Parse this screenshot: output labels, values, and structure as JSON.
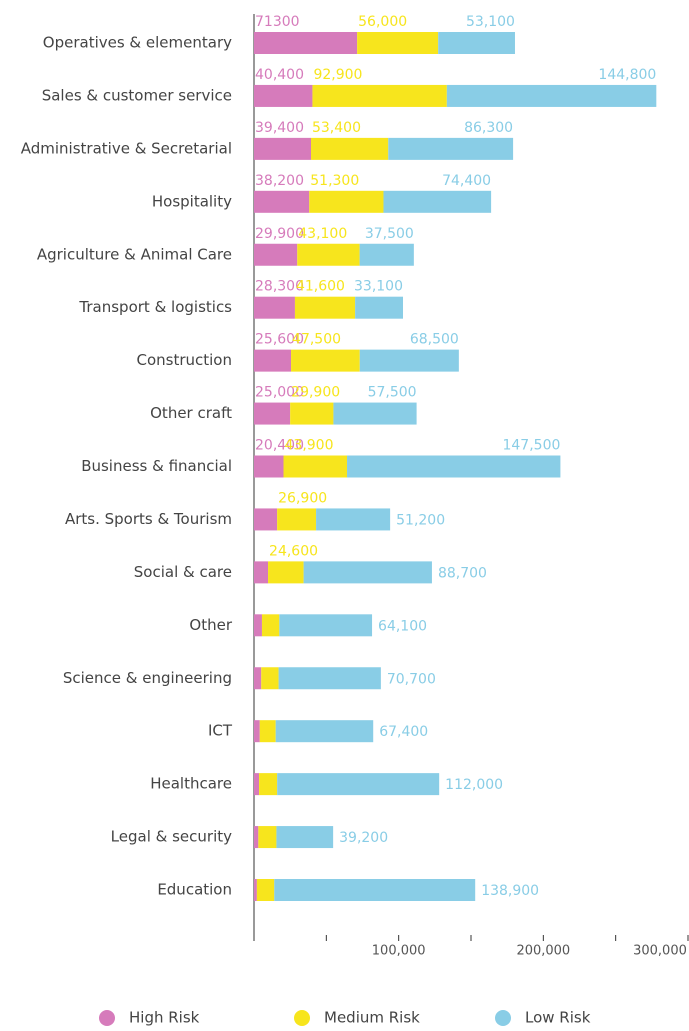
{
  "chart_data": {
    "type": "stacked-bar-horizontal",
    "categories": [
      "Operatives & elementary",
      "Sales & customer service",
      "Administrative & Secretarial",
      "Hospitality",
      "Agriculture & Animal Care",
      "Transport & logistics",
      "Construction",
      "Other craft",
      "Business & financial",
      "Arts. Sports & Tourism",
      "Social & care",
      "Other",
      "Science & engineering",
      "ICT",
      "Healthcare",
      "Legal & security",
      "Education"
    ],
    "series": [
      {
        "name": "High Risk",
        "color": "#d67bbb",
        "values": [
          71300,
          40400,
          39400,
          38200,
          29900,
          28300,
          25600,
          25000,
          20400,
          16000,
          9700,
          5500,
          5000,
          4000,
          3500,
          3000,
          2000
        ],
        "value_labels": [
          "71300",
          "40,400",
          "39,400",
          "38,200",
          "29,900",
          "28,300",
          "25,600",
          "25,000",
          "20,400",
          null,
          null,
          null,
          null,
          null,
          null,
          null,
          null
        ]
      },
      {
        "name": "Medium Risk",
        "color": "#f7e51d",
        "values": [
          56000,
          92900,
          53400,
          51300,
          43100,
          41600,
          47500,
          29900,
          43900,
          26900,
          24600,
          12000,
          12000,
          11000,
          12500,
          12500,
          12000
        ],
        "value_labels": [
          "56,000",
          "92,900",
          "53,400",
          "51,300",
          "43,100",
          "41,600",
          "47,500",
          "29,900",
          "43,900",
          "26,900",
          "24,600",
          null,
          null,
          null,
          null,
          null,
          null
        ]
      },
      {
        "name": "Low Risk",
        "color": "#89cde6",
        "values": [
          53100,
          144800,
          86300,
          74400,
          37500,
          33100,
          68500,
          57500,
          147500,
          51200,
          88700,
          64100,
          70700,
          67400,
          112000,
          39200,
          138900
        ],
        "value_labels": [
          "53,100",
          "144,800",
          "86,300",
          "74,400",
          "37,500",
          "33,100",
          "68,500",
          "57,500",
          "147,500",
          "51,200",
          "88,700",
          "64,100",
          "70,700",
          "67,400",
          "112,000",
          "39,200",
          "138,900"
        ]
      }
    ],
    "xlim": [
      0,
      300000
    ],
    "xticks": [
      {
        "value": 100000,
        "label": "100,000"
      },
      {
        "value": 200000,
        "label": "200,000"
      },
      {
        "value": 300000,
        "label": "300,000"
      }
    ],
    "minor_xticks": [
      0,
      50000,
      150000,
      250000
    ],
    "legend": "bottom"
  }
}
